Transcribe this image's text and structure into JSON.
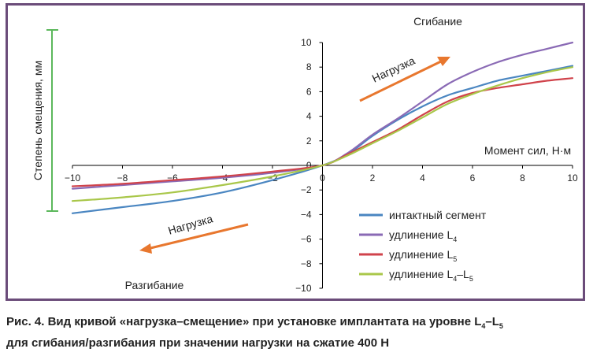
{
  "chart_data": {
    "type": "line",
    "xlim": [
      -10,
      10
    ],
    "ylim": [
      -10,
      10
    ],
    "xticks": [
      "−10",
      "−8",
      "−6",
      "−4",
      "−2",
      "0",
      "2",
      "4",
      "6",
      "8",
      "10"
    ],
    "yticks": [
      "10",
      "8",
      "6",
      "4",
      "2",
      "0",
      "−2",
      "−4",
      "−6",
      "−8",
      "−10"
    ],
    "ylabel": "Степень смещения, мм",
    "xlabel": "Момент сил, Н·м",
    "annotations": {
      "flexion": "Сгибание",
      "extension": "Разгибание",
      "load_upper": "Нагрузка",
      "load_lower": "Нагрузка"
    },
    "legend_position": "bottom-right",
    "grid": false,
    "series": [
      {
        "name": "интактный сегмент",
        "color": "#4a86c1",
        "points": [
          [
            -10,
            -3.9
          ],
          [
            -8,
            -3.4
          ],
          [
            -6,
            -2.9
          ],
          [
            -4,
            -2.2
          ],
          [
            -2,
            -1.2
          ],
          [
            0,
            0
          ],
          [
            1,
            0.9
          ],
          [
            2,
            2.4
          ],
          [
            3,
            3.7
          ],
          [
            4,
            4.8
          ],
          [
            5,
            5.7
          ],
          [
            6,
            6.3
          ],
          [
            7,
            6.9
          ],
          [
            8,
            7.3
          ],
          [
            9,
            7.7
          ],
          [
            10,
            8.1
          ]
        ]
      },
      {
        "name": "удлинение L4",
        "color": "#8a6ab5",
        "points": [
          [
            -10,
            -1.9
          ],
          [
            -8,
            -1.6
          ],
          [
            -6,
            -1.3
          ],
          [
            -4,
            -1.0
          ],
          [
            -2,
            -0.6
          ],
          [
            0,
            0
          ],
          [
            1,
            1.0
          ],
          [
            2,
            2.5
          ],
          [
            3,
            3.8
          ],
          [
            4,
            5.2
          ],
          [
            5,
            6.6
          ],
          [
            6,
            7.6
          ],
          [
            7,
            8.4
          ],
          [
            8,
            9.0
          ],
          [
            9,
            9.5
          ],
          [
            10,
            10.0
          ]
        ]
      },
      {
        "name": "удлинение L5",
        "color": "#d0434b",
        "points": [
          [
            -10,
            -1.7
          ],
          [
            -8,
            -1.5
          ],
          [
            -6,
            -1.2
          ],
          [
            -4,
            -0.9
          ],
          [
            -2,
            -0.5
          ],
          [
            0,
            0
          ],
          [
            1,
            0.9
          ],
          [
            2,
            1.9
          ],
          [
            3,
            2.9
          ],
          [
            4,
            4.1
          ],
          [
            5,
            5.2
          ],
          [
            6,
            5.9
          ],
          [
            7,
            6.3
          ],
          [
            8,
            6.6
          ],
          [
            9,
            6.9
          ],
          [
            10,
            7.1
          ]
        ]
      },
      {
        "name": "удлинение L4–L5",
        "color": "#a9c74a",
        "points": [
          [
            -10,
            -2.9
          ],
          [
            -8,
            -2.6
          ],
          [
            -6,
            -2.2
          ],
          [
            -4,
            -1.6
          ],
          [
            -2,
            -0.9
          ],
          [
            0,
            0
          ],
          [
            1,
            0.8
          ],
          [
            2,
            1.8
          ],
          [
            3,
            2.8
          ],
          [
            4,
            3.9
          ],
          [
            5,
            5.0
          ],
          [
            6,
            5.8
          ],
          [
            7,
            6.5
          ],
          [
            8,
            7.1
          ],
          [
            9,
            7.6
          ],
          [
            10,
            8.0
          ]
        ]
      }
    ],
    "legend": [
      {
        "main": "интактный сегмент",
        "sub1": "",
        "mid": "",
        "sub2": ""
      },
      {
        "main": "удлинение L",
        "sub1": "4",
        "mid": "",
        "sub2": ""
      },
      {
        "main": "удлинение L",
        "sub1": "5",
        "mid": "",
        "sub2": ""
      },
      {
        "main": "удлинение L",
        "sub1": "4",
        "mid": "–L",
        "sub2": "5"
      }
    ]
  },
  "caption": {
    "line1_a": "Рис. 4. Вид кривой «нагрузка–смещение» при установке имплантата на уровне L",
    "line1_sub1": "4",
    "line1_b": "–L",
    "line1_sub2": "5",
    "line2": "для сгибания/разгибания при значении нагрузки на сжатие 400 Н"
  },
  "colors": {
    "frame": "#6b4c7a",
    "arrow": "#e8772e",
    "bracket": "#5cb85c",
    "axis": "#000000"
  }
}
